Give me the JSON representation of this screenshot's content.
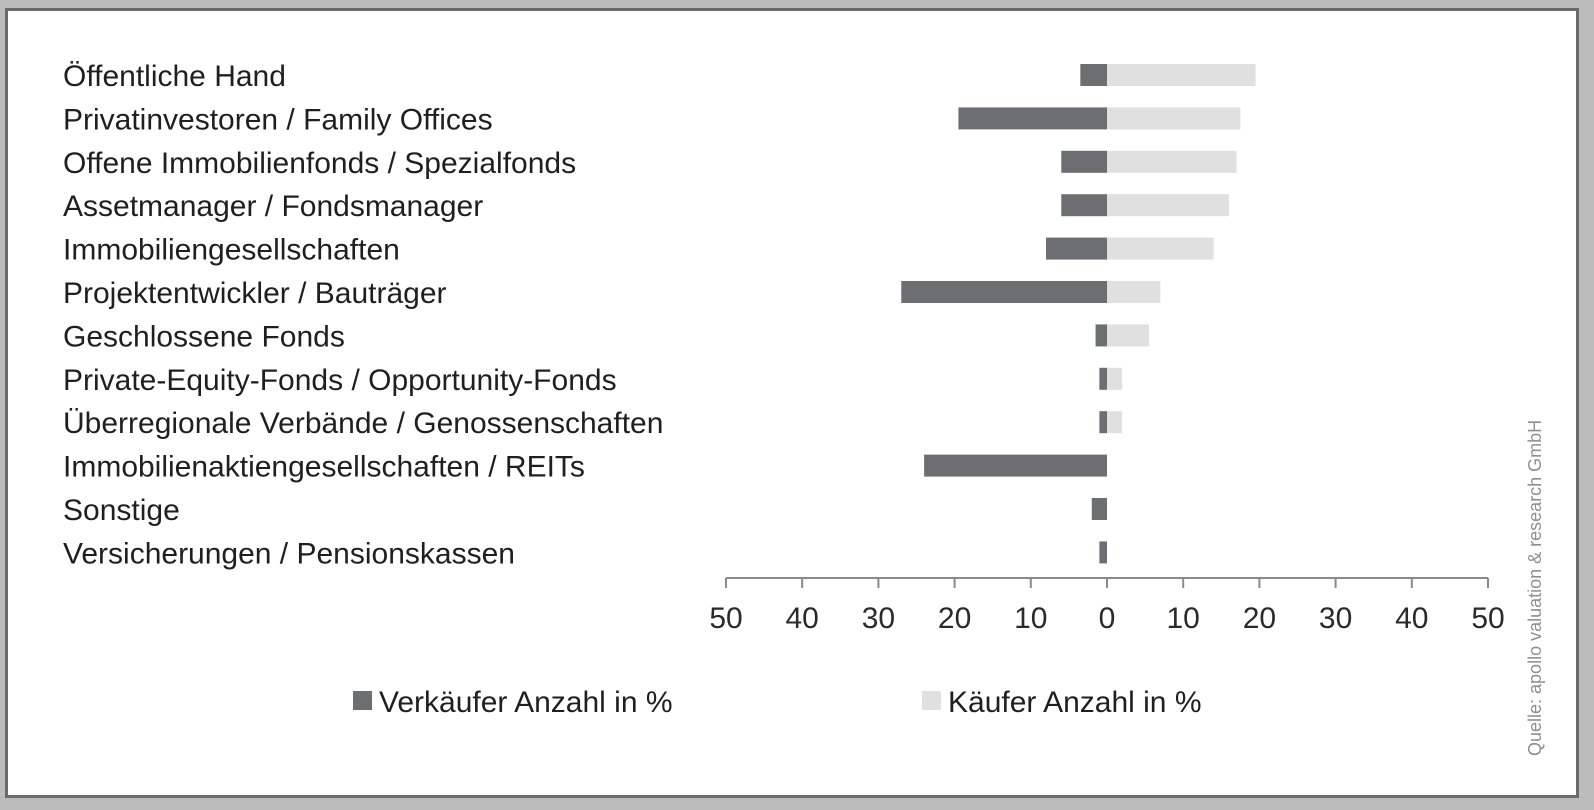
{
  "chart_data": {
    "type": "bar",
    "orientation": "horizontal-diverging",
    "categories": [
      "Öffentliche Hand",
      "Privatinvestoren / Family Offices",
      "Offene Immobilienfonds / Spezialfonds",
      "Assetmanager / Fondsmanager",
      "Immobiliengesellschaften",
      "Projektentwickler / Bauträger",
      "Geschlossene Fonds",
      "Private-Equity-Fonds / Opportunity-Fonds",
      "Überregionale Verbände / Genossenschaften",
      "Immobilienaktiengesellschaften / REITs",
      "Sonstige",
      "Versicherungen / Pensionskassen"
    ],
    "series": [
      {
        "name": "Verkäufer Anzahl in %",
        "color": "#6d6e71",
        "direction": "left",
        "values": [
          3.5,
          19.5,
          6,
          6,
          8,
          27,
          1.5,
          1,
          1,
          24,
          2,
          1
        ]
      },
      {
        "name": "Käufer Anzahl in %",
        "color": "#e0e0e0",
        "direction": "right",
        "values": [
          19.5,
          17.5,
          17,
          16,
          14,
          7,
          5.5,
          2,
          2,
          0,
          0,
          0
        ]
      }
    ],
    "xlim": [
      -50,
      50
    ],
    "xticks": [
      50,
      40,
      30,
      20,
      10,
      0,
      10,
      20,
      30,
      40,
      50
    ],
    "legend_position": "bottom",
    "grid": false,
    "source": "Quelle: apollo valuation & research GmbH"
  }
}
